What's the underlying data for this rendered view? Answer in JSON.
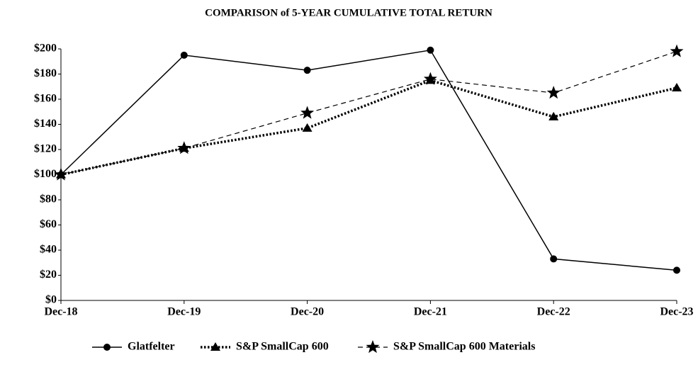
{
  "chart_data": {
    "type": "line",
    "title": "COMPARISON of 5-YEAR CUMULATIVE TOTAL RETURN",
    "categories": [
      "Dec-18",
      "Dec-19",
      "Dec-20",
      "Dec-21",
      "Dec-22",
      "Dec-23"
    ],
    "series": [
      {
        "name": "Glatfelter",
        "color": "#000000",
        "marker": "circle",
        "dash": "solid",
        "values": [
          100,
          195,
          183,
          199,
          33,
          24
        ]
      },
      {
        "name": "S&P SmallCap 600",
        "color": "#000000",
        "marker": "triangle",
        "dash": "dotted",
        "values": [
          100,
          121,
          137,
          175,
          146,
          169
        ]
      },
      {
        "name": "S&P SmallCap 600 Materials",
        "color": "#000000",
        "marker": "star",
        "dash": "dashed",
        "values": [
          100,
          121,
          149,
          176,
          165,
          198
        ]
      }
    ],
    "ylim": [
      0,
      200
    ],
    "yticks": [
      {
        "value": 0,
        "label": "$0"
      },
      {
        "value": 20,
        "label": "$20"
      },
      {
        "value": 40,
        "label": "$40"
      },
      {
        "value": 60,
        "label": "$60"
      },
      {
        "value": 80,
        "label": "$80"
      },
      {
        "value": 100,
        "label": "$100"
      },
      {
        "value": 120,
        "label": "$120"
      },
      {
        "value": 140,
        "label": "$140"
      },
      {
        "value": 160,
        "label": "$160"
      },
      {
        "value": 180,
        "label": "$180"
      },
      {
        "value": 200,
        "label": "$200"
      }
    ],
    "grid": false,
    "legend": "bottom"
  }
}
